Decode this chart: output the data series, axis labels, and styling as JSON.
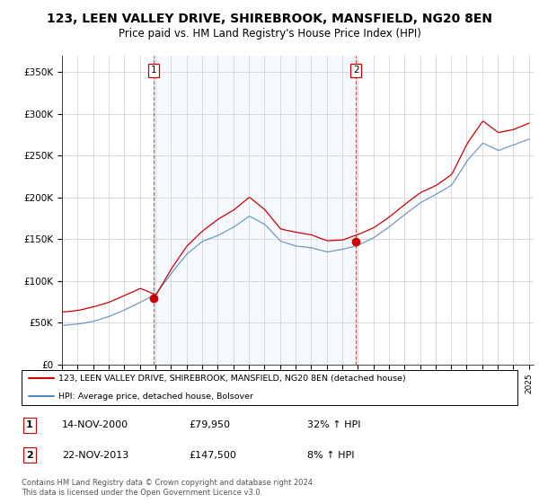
{
  "title": "123, LEEN VALLEY DRIVE, SHIREBROOK, MANSFIELD, NG20 8EN",
  "subtitle": "Price paid vs. HM Land Registry's House Price Index (HPI)",
  "title_fontsize": 10,
  "subtitle_fontsize": 8.5,
  "ylabel_ticks": [
    "£0",
    "£50K",
    "£100K",
    "£150K",
    "£200K",
    "£250K",
    "£300K",
    "£350K"
  ],
  "ytick_vals": [
    0,
    50000,
    100000,
    150000,
    200000,
    250000,
    300000,
    350000
  ],
  "ylim": [
    0,
    370000
  ],
  "xlim_start": 1995.0,
  "xlim_end": 2025.3,
  "legend_line1": "123, LEEN VALLEY DRIVE, SHIREBROOK, MANSFIELD, NG20 8EN (detached house)",
  "legend_line2": "HPI: Average price, detached house, Bolsover",
  "sale1_date": "14-NOV-2000",
  "sale1_price": "£79,950",
  "sale1_hpi": "32% ↑ HPI",
  "sale2_date": "22-NOV-2013",
  "sale2_price": "£147,500",
  "sale2_hpi": "8% ↑ HPI",
  "footnote": "Contains HM Land Registry data © Crown copyright and database right 2024.\nThis data is licensed under the Open Government Licence v3.0.",
  "red_color": "#cc0000",
  "blue_color": "#5588bb",
  "shade_color": "#ddeeff",
  "vline_color": "#cc0000",
  "grid_color": "#cccccc",
  "bg_color": "#ffffff",
  "sale1_x": 2000.87,
  "sale1_y": 79950,
  "sale2_x": 2013.89,
  "sale2_y": 147500,
  "year_ticks": [
    1995,
    1996,
    1997,
    1998,
    1999,
    2000,
    2001,
    2002,
    2003,
    2004,
    2005,
    2006,
    2007,
    2008,
    2009,
    2010,
    2011,
    2012,
    2013,
    2014,
    2015,
    2016,
    2017,
    2018,
    2019,
    2020,
    2021,
    2022,
    2023,
    2024,
    2025
  ]
}
